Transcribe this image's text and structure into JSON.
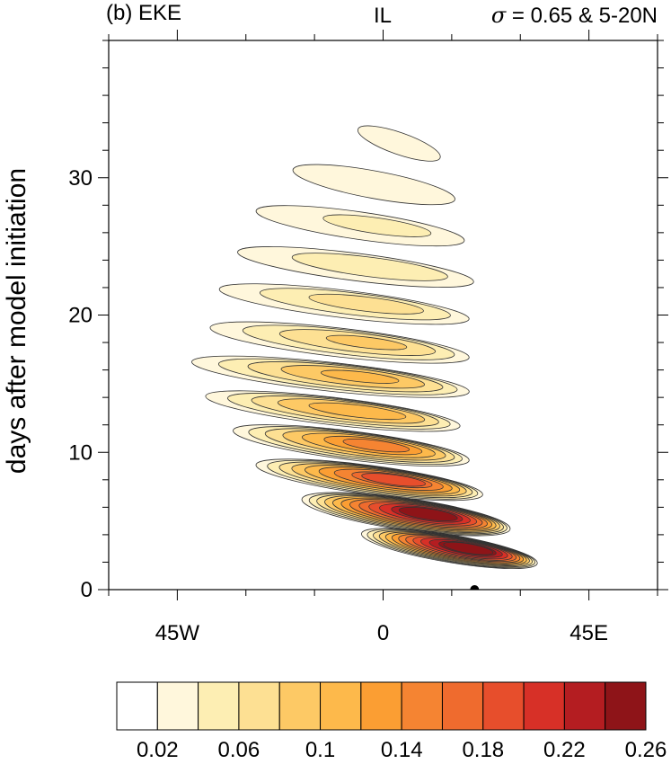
{
  "chart_data": {
    "type": "heatmap",
    "title_left": "(b) EKE",
    "title_center": "IL",
    "title_right_symbol": "σ",
    "title_right_text": " = 0.65 & 5-20N",
    "ylabel": "days after model initiation",
    "xlabel": "",
    "xlim": [
      -60,
      60
    ],
    "ylim": [
      0,
      40
    ],
    "x_ticks": [
      {
        "value": -45,
        "label": "45W"
      },
      {
        "value": 0,
        "label": "0"
      },
      {
        "value": 45,
        "label": "45E"
      }
    ],
    "y_ticks": [
      {
        "value": 0,
        "label": "0"
      },
      {
        "value": 10,
        "label": "10"
      },
      {
        "value": 20,
        "label": "20"
      },
      {
        "value": 30,
        "label": "30"
      }
    ],
    "contour_levels": [
      0.02,
      0.04,
      0.06,
      0.08,
      0.1,
      0.12,
      0.14,
      0.16,
      0.18,
      0.2,
      0.22,
      0.24,
      0.26
    ],
    "colorbar_labels": [
      "0.02",
      "0.06",
      "0.1",
      "0.14",
      "0.18",
      "0.22",
      "0.26"
    ],
    "colorbar_colors": [
      "#ffffff",
      "#fff7dc",
      "#fdeeb3",
      "#fde093",
      "#fdc965",
      "#fdb94b",
      "#fb9e33",
      "#f58432",
      "#ef6b2e",
      "#e74e2c",
      "#d73027",
      "#b41d21",
      "#8e1418"
    ],
    "bands": [
      {
        "day": 32.5,
        "x0": -6,
        "x1": 13,
        "thickness": 1.6,
        "peak": 0.03
      },
      {
        "day": 29.5,
        "x0": -20,
        "x1": 16,
        "thickness": 2.0,
        "peak": 0.035
      },
      {
        "day": 26.5,
        "x0": -28,
        "x1": 18,
        "thickness": 2.0,
        "peak": 0.04
      },
      {
        "day": 23.5,
        "x0": -32,
        "x1": 20,
        "thickness": 2.0,
        "peak": 0.05
      },
      {
        "day": 20.8,
        "x0": -36,
        "x1": 19,
        "thickness": 2.0,
        "peak": 0.065
      },
      {
        "day": 18.0,
        "x0": -38,
        "x1": 19,
        "thickness": 2.1,
        "peak": 0.08
      },
      {
        "day": 15.5,
        "x0": -42,
        "x1": 19,
        "thickness": 2.1,
        "peak": 0.1
      },
      {
        "day": 13.0,
        "x0": -39,
        "x1": 17,
        "thickness": 2.0,
        "peak": 0.11
      },
      {
        "day": 10.5,
        "x0": -33,
        "x1": 19,
        "thickness": 2.1,
        "peak": 0.14
      },
      {
        "day": 8.0,
        "x0": -28,
        "x1": 22,
        "thickness": 2.1,
        "peak": 0.18
      },
      {
        "day": 5.5,
        "x0": -18,
        "x1": 28,
        "thickness": 2.3,
        "peak": 0.25
      },
      {
        "day": 3.0,
        "x0": -5,
        "x1": 34,
        "thickness": 2.0,
        "peak": 0.27
      }
    ],
    "markers": [
      {
        "x": 20,
        "y": 0
      }
    ],
    "grid": false
  }
}
